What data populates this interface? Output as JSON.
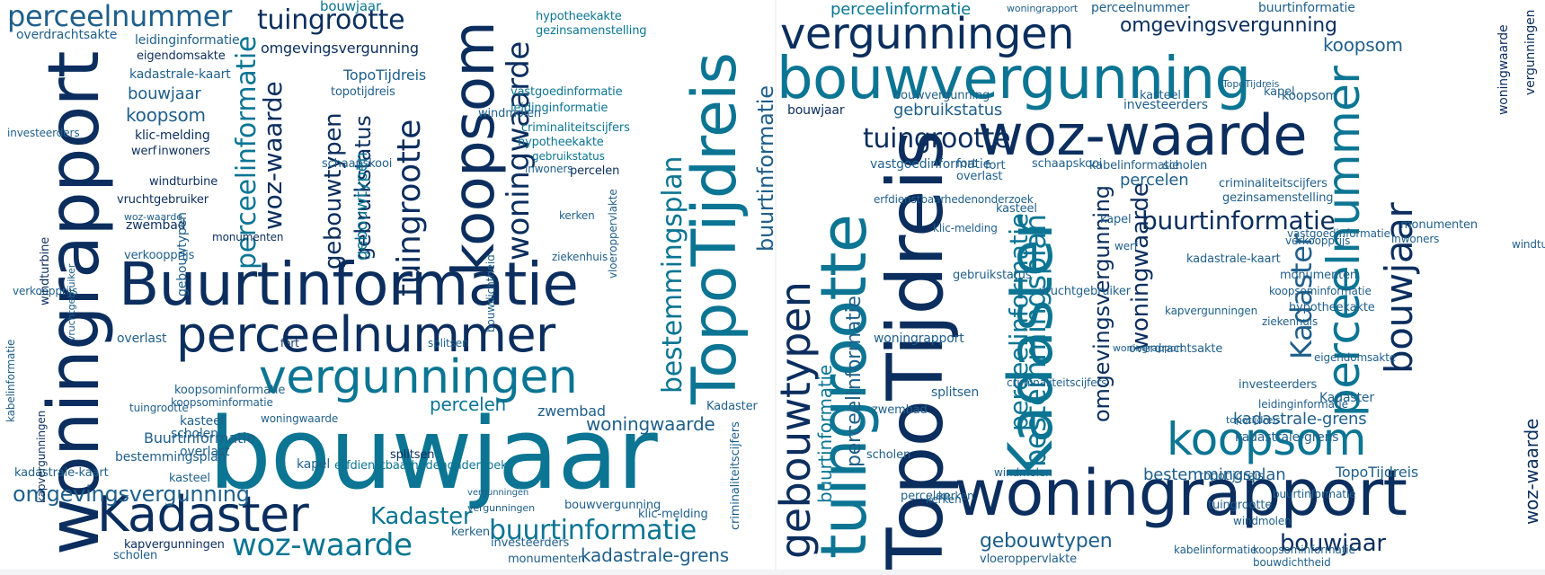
{
  "colors": {
    "navy": "#0b2e5e",
    "blue": "#1f5f8b",
    "teal": "#0b7593",
    "aqua": "#2e93b0",
    "background": "#ffffff"
  },
  "clouds": [
    {
      "name": "word-cloud-left",
      "words": [
        {
          "text": "perceelnummer"
        },
        {
          "text": "tuingrootte"
        },
        {
          "text": "bouwjaar"
        },
        {
          "text": "woningrapport"
        },
        {
          "text": "Buurtinformatie"
        },
        {
          "text": "perceelnummer"
        },
        {
          "text": "vergunningen"
        },
        {
          "text": "bouwjaar"
        },
        {
          "text": "Kadaster"
        },
        {
          "text": "woz-waarde"
        },
        {
          "text": "buurtinformatie"
        },
        {
          "text": "koopsom"
        },
        {
          "text": "TopoTijdreis"
        },
        {
          "text": "bestemmingsplan"
        },
        {
          "text": "woningwaarde"
        },
        {
          "text": "tuingrootte"
        },
        {
          "text": "woz-waarde"
        },
        {
          "text": "gebouwtypen"
        },
        {
          "text": "perceelinformatie"
        },
        {
          "text": "omgevingsvergunning"
        },
        {
          "text": "Kadaster"
        },
        {
          "text": "percelen"
        },
        {
          "text": "woningwaarde"
        },
        {
          "text": "kadastrale-grens"
        },
        {
          "text": "gebruikstatus"
        },
        {
          "text": "koopsom"
        },
        {
          "text": "bouwjaar"
        },
        {
          "text": "overdrachtsakte"
        },
        {
          "text": "leidinginformatie"
        },
        {
          "text": "eigendomsakte"
        },
        {
          "text": "kadastrale-kaart"
        },
        {
          "text": "omgevingsvergunning"
        },
        {
          "text": "topotijdreis"
        },
        {
          "text": "TopoTijdreis"
        },
        {
          "text": "hypotheekakte"
        },
        {
          "text": "gezinsamenstelling"
        },
        {
          "text": "vastgoedinformatie"
        },
        {
          "text": "leidinginformatie"
        },
        {
          "text": "criminaliteitscijfers"
        },
        {
          "text": "hypotheekakte"
        },
        {
          "text": "gebruikstatus"
        },
        {
          "text": "klic-melding"
        },
        {
          "text": "werf"
        },
        {
          "text": "inwoners"
        },
        {
          "text": "windturbine"
        },
        {
          "text": "vruchtgebruiker"
        },
        {
          "text": "zwembad"
        },
        {
          "text": "monumenten"
        },
        {
          "text": "verkoopprijs"
        },
        {
          "text": "erfdienstbaarhedenonderzoek"
        },
        {
          "text": "percelen"
        },
        {
          "text": "overlast"
        },
        {
          "text": "kapel"
        },
        {
          "text": "kasteel"
        },
        {
          "text": "scholen"
        },
        {
          "text": "splitsen"
        },
        {
          "text": "fort"
        },
        {
          "text": "kapvergunningen"
        },
        {
          "text": "investeerders"
        },
        {
          "text": "monumenten"
        },
        {
          "text": "Buurtinformatie"
        },
        {
          "text": "klic-melding"
        },
        {
          "text": "woningwaarde"
        },
        {
          "text": "kerken"
        },
        {
          "text": "zwembad"
        },
        {
          "text": "ziekenhuis"
        },
        {
          "text": "schaapskooi"
        },
        {
          "text": "windmolen"
        },
        {
          "text": "inwoners"
        },
        {
          "text": "koopsominformatie"
        },
        {
          "text": "bestemmingsplan"
        },
        {
          "text": "kadastrale-kaart"
        },
        {
          "text": "tuingrootte"
        },
        {
          "text": "vergunningen"
        },
        {
          "text": "Kadaster"
        },
        {
          "text": "bouwvergunning"
        },
        {
          "text": "overlast"
        },
        {
          "text": "kasteel"
        },
        {
          "text": "buurtinformatie"
        },
        {
          "text": "gebouwtypen"
        },
        {
          "text": "criminaliteitscijfers"
        },
        {
          "text": "bouwdichtheid"
        },
        {
          "text": "vloeroppervlakte"
        },
        {
          "text": "gebouwtypen"
        },
        {
          "text": "scholen"
        },
        {
          "text": "kapvergunningen"
        },
        {
          "text": "kabelinformatie"
        },
        {
          "text": "investeerders"
        },
        {
          "text": "vergunningen"
        },
        {
          "text": "koopsominformatie"
        },
        {
          "text": "kerken"
        },
        {
          "text": "woz-waarde"
        },
        {
          "text": "verkoopprijs"
        },
        {
          "text": "splitsen"
        },
        {
          "text": "windturbine"
        },
        {
          "text": "vruchtgebruiker"
        }
      ]
    },
    {
      "name": "word-cloud-right",
      "words": [
        {
          "text": "perceelinformatie"
        },
        {
          "text": "woningrapport"
        },
        {
          "text": "perceelnummer"
        },
        {
          "text": "buurtinformatie"
        },
        {
          "text": "vergunningen"
        },
        {
          "text": "omgevingsvergunning"
        },
        {
          "text": "koopsom"
        },
        {
          "text": "bouwvergunning"
        },
        {
          "text": "woz-waarde"
        },
        {
          "text": "TopoTijdreis"
        },
        {
          "text": "Kadaster"
        },
        {
          "text": "woningrapport"
        },
        {
          "text": "tuingrootte"
        },
        {
          "text": "gebouwtypen"
        },
        {
          "text": "koopsom"
        },
        {
          "text": "perceelnummer"
        },
        {
          "text": "bouwjaar"
        },
        {
          "text": "Kadaster"
        },
        {
          "text": "bestemmingsplan"
        },
        {
          "text": "perceelinformatie"
        },
        {
          "text": "buurtinformatie"
        },
        {
          "text": "woningwaarde"
        },
        {
          "text": "omgevingsvergunning"
        },
        {
          "text": "bouwjaar"
        },
        {
          "text": "tuingrootte"
        },
        {
          "text": "vastgoedinformatie"
        },
        {
          "text": "gebruikstatus"
        },
        {
          "text": "kadastrale-grens"
        },
        {
          "text": "perceelinformatie"
        },
        {
          "text": "buurtinformatie"
        },
        {
          "text": "percelen"
        },
        {
          "text": "criminaliteitscijfers"
        },
        {
          "text": "gezinsamenstelling"
        },
        {
          "text": "schaapskooi"
        },
        {
          "text": "kabelinformatie"
        },
        {
          "text": "scholen"
        },
        {
          "text": "kadastrale-kaart"
        },
        {
          "text": "TopoTijdreis"
        },
        {
          "text": "kadastrale-grens"
        },
        {
          "text": "bestemmingsplan"
        },
        {
          "text": "gebouwtypen"
        },
        {
          "text": "kabelinformatie"
        },
        {
          "text": "koopsominformatie"
        },
        {
          "text": "bouwdichtheid"
        },
        {
          "text": "vloeroppervlakte"
        },
        {
          "text": "investeerders"
        },
        {
          "text": "vruchtgebruiker"
        },
        {
          "text": "woningrapport"
        },
        {
          "text": "zwembad"
        },
        {
          "text": "kapvergunningen"
        },
        {
          "text": "splitsen"
        },
        {
          "text": "overlast"
        },
        {
          "text": "kasteel"
        },
        {
          "text": "kapel"
        },
        {
          "text": "fort"
        },
        {
          "text": "werf"
        },
        {
          "text": "klic-melding"
        },
        {
          "text": "hypotheekakte"
        },
        {
          "text": "eigendomsakte"
        },
        {
          "text": "leidinginformatie"
        },
        {
          "text": "monumenten"
        },
        {
          "text": "ziekenhuis"
        },
        {
          "text": "inwoners"
        },
        {
          "text": "windturbine"
        },
        {
          "text": "windmolen"
        },
        {
          "text": "kerken"
        },
        {
          "text": "overdrachtsakte"
        },
        {
          "text": "erfdienstbaarhedenonderzoek"
        },
        {
          "text": "verkoopprijs"
        },
        {
          "text": "woz-waarde"
        },
        {
          "text": "bouwjaar"
        },
        {
          "text": "topotijdreis"
        },
        {
          "text": "vergunningen"
        },
        {
          "text": "Kadaster"
        },
        {
          "text": "gebruikstatus"
        },
        {
          "text": "woningwaarde"
        },
        {
          "text": "bouwvergunning"
        },
        {
          "text": "woningrapport"
        },
        {
          "text": "vastgoedinformatie"
        },
        {
          "text": "investeerders"
        },
        {
          "text": "kerken"
        },
        {
          "text": "scholen"
        },
        {
          "text": "koopsom"
        },
        {
          "text": "criminaliteitscijfers"
        },
        {
          "text": "kasteel"
        },
        {
          "text": "kapel"
        },
        {
          "text": "fort"
        },
        {
          "text": "tuingrootte"
        },
        {
          "text": "percelen"
        },
        {
          "text": "TopoTijdreis"
        },
        {
          "text": "windmolen"
        },
        {
          "text": "monumenten"
        },
        {
          "text": "buurtinformatie"
        },
        {
          "text": "koopsominformatie"
        },
        {
          "text": "topotijdreis"
        }
      ]
    }
  ]
}
